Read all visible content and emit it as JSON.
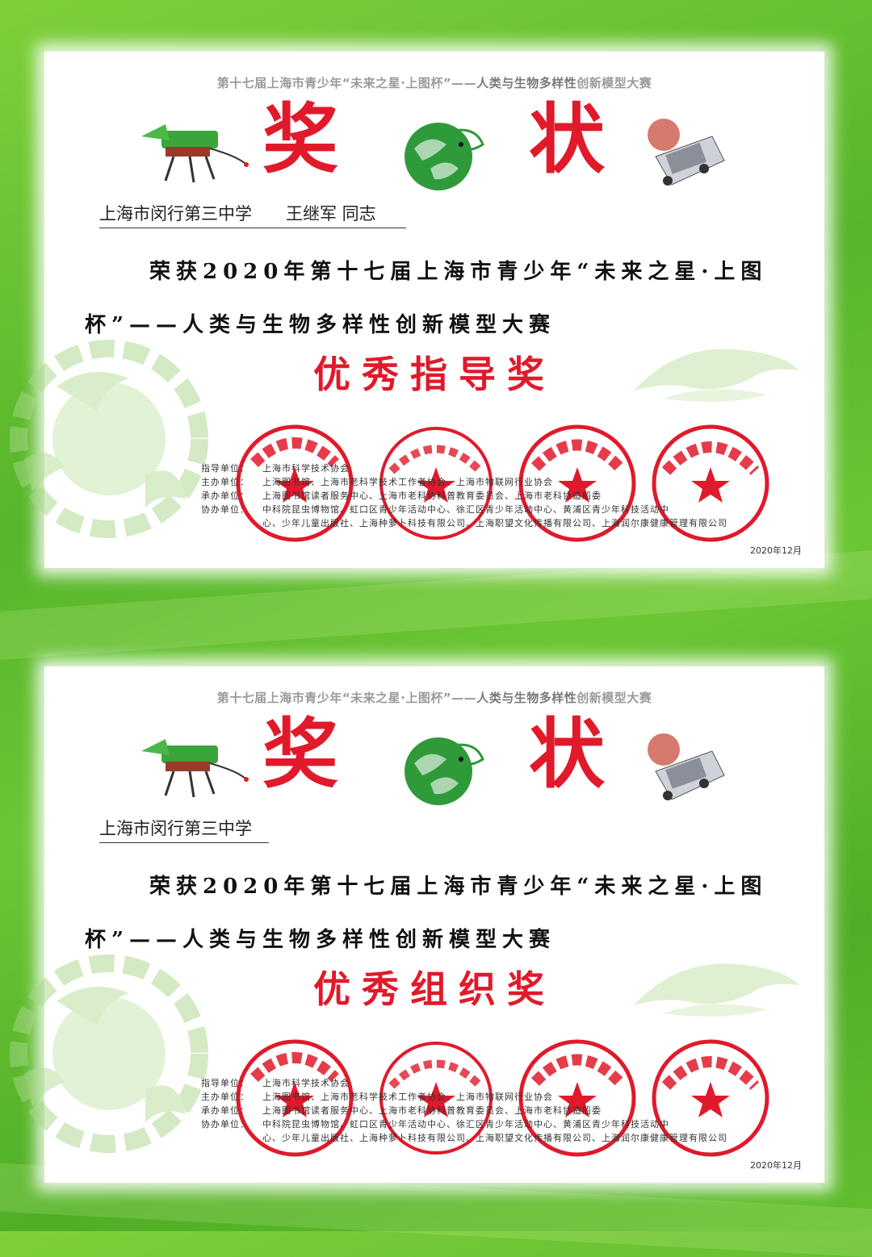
{
  "certificates": [
    {
      "header_prefix": "第十七届上海市青少年“未来之星·上图杯”——",
      "header_highlight": "人类与生物多样性",
      "header_suffix": "创新模型大赛",
      "title_char_1": "奖",
      "title_char_2": "状",
      "recipient": "上海市闵行第三中学　　王继军 同志",
      "body_line_1": "荣获2020年第十七届上海市青少年“未来之星·上图",
      "body_line_2": "杯”——人类与生物多样性创新模型大赛",
      "award": "优秀指导奖",
      "orgs": {
        "guide_label": "指导单位：",
        "guide": "上海市科学技术协会",
        "host_label": "主办单位：",
        "host": "上海图书馆、上海市老科学技术工作者协会、上海市物联网行业协会",
        "undertake_label": "承办单位：",
        "undertake": "上海图书馆读者服务中心、上海市老科协科普教育委员会、上海市老科协造船委",
        "co_label": "协办单位：",
        "co_1": "中科院昆虫博物馆、虹口区青少年活动中心、徐汇区青少年活动中心、黄浦区青少年科技活动中",
        "co_2": "心、少年儿童出版社、上海种萝卜科技有限公司、上海职望文化传播有限公司、上海润尔康健康管理有限公司"
      },
      "date": "2020年12月"
    },
    {
      "header_prefix": "第十七届上海市青少年“未来之星·上图杯”——",
      "header_highlight": "人类与生物多样性",
      "header_suffix": "创新模型大赛",
      "title_char_1": "奖",
      "title_char_2": "状",
      "recipient": "上海市闵行第三中学",
      "body_line_1": "荣获2020年第十七届上海市青少年“未来之星·上图",
      "body_line_2": "杯”——人类与生物多样性创新模型大赛",
      "award": "优秀组织奖",
      "orgs": {
        "guide_label": "指导单位：",
        "guide": "上海市科学技术协会",
        "host_label": "主办单位：",
        "host": "上海图书馆、上海市老科学技术工作者协会、上海市物联网行业协会",
        "undertake_label": "承办单位：",
        "undertake": "上海图书馆读者服务中心、上海市老科协科普教育委员会、上海市老科协造船委",
        "co_label": "协办单位：",
        "co_1": "中科院昆虫博物馆、虹口区青少年活动中心、徐汇区青少年活动中心、黄浦区青少年科技活动中",
        "co_2": "心、少年儿童出版社、上海种萝卜科技有限公司、上海职望文化传播有限公司、上海润尔康健康管理有限公司"
      },
      "date": "2020年12月"
    }
  ],
  "seals": [
    "上海市科学技术协会",
    "上海图书馆（上海科学技术情报研究所）",
    "上海市老科学技术工作者协会",
    "上海市物联网行业协会"
  ],
  "colors": {
    "seal_red": "#e01a2b",
    "logo_green": "#2f9a3a",
    "background_green": "#5bb82c"
  }
}
